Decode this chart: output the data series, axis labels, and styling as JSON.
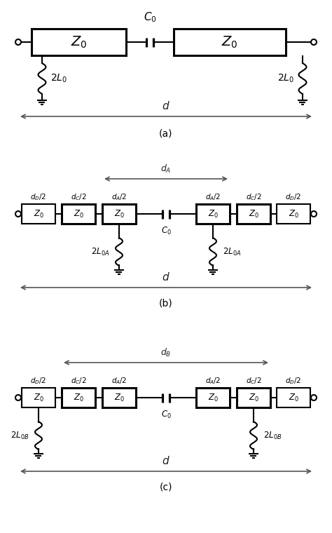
{
  "fig_width": 4.74,
  "fig_height": 7.6,
  "bg_color": "#ffffff",
  "line_color": "#000000",
  "panel_labels": [
    "(a)",
    "(b)",
    "(c)"
  ],
  "Z0_label": "$Z_0$",
  "C0_label": "$C_0$",
  "twoL0_label": "$2L_0$",
  "twoL0A_label": "$2L_{0A}$",
  "twoL0B_label": "$2L_{0B}$",
  "d_label": "$d$",
  "dA_label": "$d_A$",
  "dB_label": "$d_B$",
  "dD2_label": "$d_D/2$",
  "dC2_label": "$d_C/2$",
  "dA2_label": "$d_A/2$"
}
